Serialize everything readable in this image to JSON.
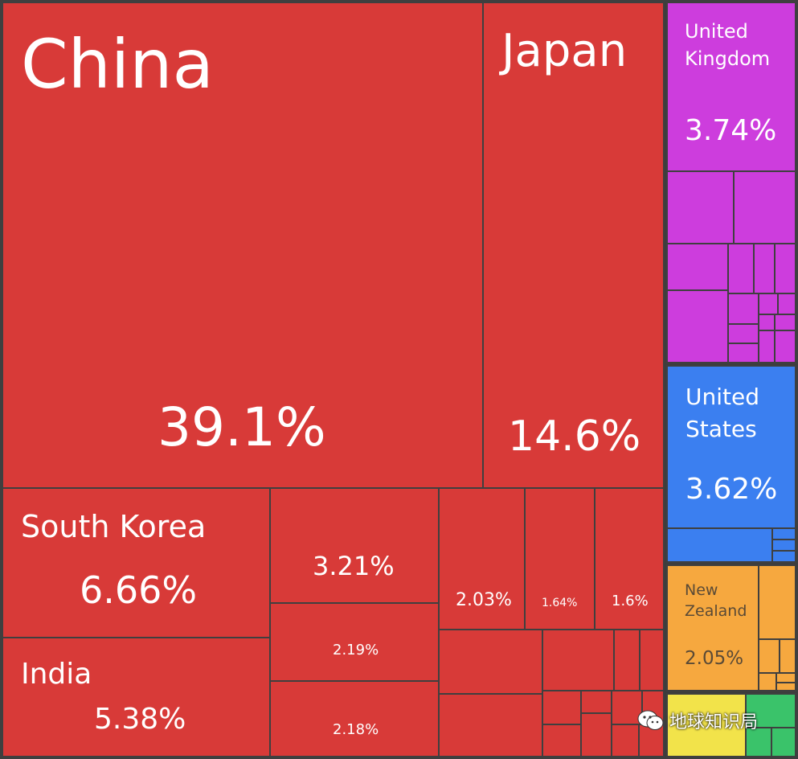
{
  "chart_data": {
    "type": "treemap",
    "title": "",
    "colors": {
      "asia": "#d83a38",
      "europe": "#cd3ddd",
      "north_america": "#3b7ff0",
      "oceania": "#f6a83f",
      "yellow": "#f2e34a",
      "green": "#3ac36a",
      "border": "#3f3f3f"
    },
    "labeled_cells": [
      {
        "name": "China",
        "value": "39.1%",
        "group": "asia"
      },
      {
        "name": "Japan",
        "value": "14.6%",
        "group": "asia"
      },
      {
        "name": "South Korea",
        "value": "6.66%",
        "group": "asia"
      },
      {
        "name": "India",
        "value": "5.38%",
        "group": "asia"
      },
      {
        "name": "",
        "value": "3.21%",
        "group": "asia"
      },
      {
        "name": "",
        "value": "2.19%",
        "group": "asia"
      },
      {
        "name": "",
        "value": "2.18%",
        "group": "asia"
      },
      {
        "name": "",
        "value": "2.03%",
        "group": "asia"
      },
      {
        "name": "",
        "value": "1.64%",
        "group": "asia"
      },
      {
        "name": "",
        "value": "1.6%",
        "group": "asia"
      },
      {
        "name_line1": "United",
        "name_line2": "Kingdom",
        "value": "3.74%",
        "group": "europe"
      },
      {
        "name_line1": "United",
        "name_line2": "States",
        "value": "3.62%",
        "group": "north_america"
      },
      {
        "name_line1": "New",
        "name_line2": "Zealand",
        "value": "2.05%",
        "group": "oceania"
      }
    ]
  },
  "watermark": {
    "text": "地球知识局",
    "icon": "wechat-icon"
  }
}
